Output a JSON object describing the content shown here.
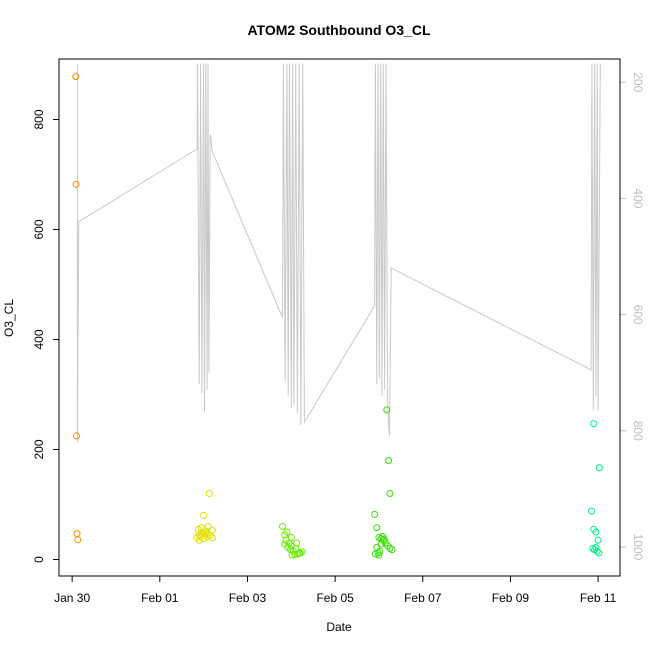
{
  "chart_data": {
    "type": "scatter",
    "title": "ATOM2 Southbound O3_CL",
    "xlabel": "Date",
    "ylabel": "O3_CL",
    "x_ticks": [
      "Jan 30",
      "Feb 01",
      "Feb 03",
      "Feb 05",
      "Feb 07",
      "Feb 09",
      "Feb 11"
    ],
    "x_tick_days": [
      0,
      2,
      4,
      6,
      8,
      10,
      12
    ],
    "xlim_days": [
      -0.3,
      12.5
    ],
    "ylim": [
      -30,
      910
    ],
    "y_ticks": [
      0,
      200,
      400,
      600,
      800
    ],
    "y2lim": [
      160,
      1050
    ],
    "y2_ticks": [
      200,
      400,
      600,
      800,
      1000
    ],
    "grid": false,
    "colors": {
      "axis": "#000000",
      "secondary_axis": "#bebebe",
      "line": "#c8c8c8",
      "points": [
        "#ff8c00",
        "#e0e000",
        "#66ee00",
        "#33e000",
        "#00ee88",
        "#00ffcc"
      ]
    },
    "series": [
      {
        "x": [
          0.08,
          0.09,
          0.1,
          0.11,
          0.13
        ],
        "y": [
          878,
          682,
          225,
          47,
          36
        ],
        "color": "#ff8c00"
      },
      {
        "x": [
          2.85,
          2.9,
          2.95,
          3.0,
          3.05,
          2.88,
          2.92,
          3.1,
          3.15,
          3.0,
          2.9,
          3.05,
          2.95,
          3.1,
          3.08,
          3.2,
          3.2,
          3.13,
          3.0
        ],
        "y": [
          40,
          45,
          50,
          38,
          48,
          55,
          42,
          60,
          44,
          80,
          35,
          52,
          58,
          46,
          41,
          53,
          39,
          120,
          47
        ],
        "color": "#e0e000"
      },
      {
        "x": [
          4.8,
          4.85,
          4.9,
          4.95,
          5.0,
          5.05,
          5.1,
          5.15,
          5.2,
          5.25,
          4.88,
          4.92,
          4.98,
          5.02,
          5.08,
          4.85,
          5.0,
          5.12,
          5.18
        ],
        "y": [
          60,
          45,
          50,
          30,
          25,
          15,
          20,
          10,
          12,
          14,
          35,
          22,
          18,
          8,
          9,
          28,
          40,
          30,
          11
        ],
        "color": "#66ee00"
      },
      {
        "x": [
          6.9,
          6.95,
          7.0,
          7.05,
          7.1,
          7.15,
          7.2,
          7.25,
          7.3,
          6.92,
          6.98,
          7.02,
          7.08,
          7.12,
          7.18,
          7.22,
          6.95,
          7.05,
          7.25,
          7.0
        ],
        "y": [
          82,
          58,
          40,
          38,
          35,
          30,
          25,
          20,
          18,
          10,
          12,
          15,
          42,
          37,
          272,
          180,
          22,
          28,
          120,
          8
        ],
        "color": "#33e000"
      },
      {
        "x": [
          11.85,
          11.9,
          11.95,
          12.0,
          11.88,
          11.92,
          11.98,
          12.02,
          12.03,
          11.9,
          11.95
        ],
        "y": [
          88,
          55,
          50,
          35,
          20,
          18,
          15,
          12,
          167,
          247,
          22
        ],
        "color": "#00ee88"
      }
    ],
    "secondary_line": {
      "axis": "y2",
      "x": [
        0.12,
        0.12,
        0.15,
        2.85,
        2.86,
        2.9,
        2.93,
        2.96,
        3.0,
        3.02,
        3.05,
        3.08,
        3.1,
        3.12,
        3.15,
        3.2,
        4.8,
        4.82,
        4.86,
        4.9,
        4.93,
        4.96,
        5.0,
        5.03,
        5.06,
        5.1,
        5.14,
        5.18,
        5.22,
        5.26,
        5.3,
        6.9,
        6.92,
        6.95,
        6.98,
        7.01,
        7.04,
        7.07,
        7.1,
        7.13,
        7.16,
        7.2,
        7.24,
        7.28,
        11.84,
        11.86,
        11.89,
        11.92,
        11.95,
        11.98,
        12.0,
        12.05
      ],
      "y": [
        170,
        820,
        440,
        315,
        168,
        720,
        168,
        735,
        168,
        768,
        168,
        730,
        168,
        700,
        290,
        320,
        605,
        168,
        715,
        168,
        740,
        168,
        760,
        168,
        755,
        168,
        770,
        168,
        790,
        168,
        785,
        585,
        168,
        720,
        168,
        710,
        168,
        740,
        168,
        730,
        168,
        755,
        810,
        520,
        695,
        168,
        765,
        168,
        740,
        168,
        765,
        168
      ]
    }
  }
}
